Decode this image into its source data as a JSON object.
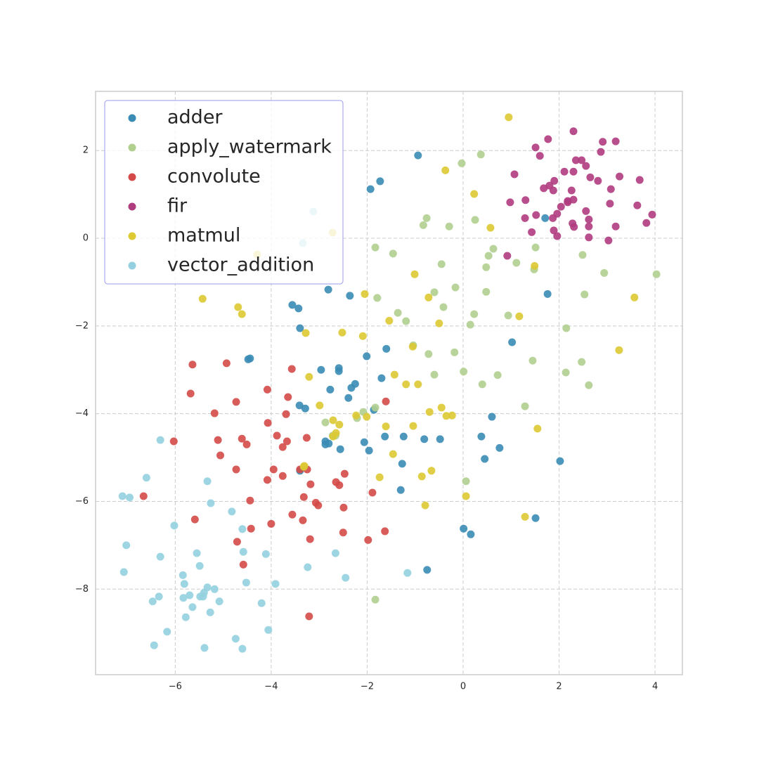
{
  "chart_data": {
    "type": "scatter",
    "xlim": [
      -7.66,
      4.57
    ],
    "ylim": [
      -9.95,
      3.35
    ],
    "xticks": [
      {
        "value": -6,
        "label": "−6"
      },
      {
        "value": -4,
        "label": "−4"
      },
      {
        "value": -2,
        "label": "−2"
      },
      0,
      2,
      4
    ],
    "yticks": [
      {
        "value": -8,
        "label": "−8"
      },
      {
        "value": -6,
        "label": "−6"
      },
      {
        "value": -4,
        "label": "−4"
      },
      {
        "value": -2,
        "label": "−2"
      },
      0,
      2
    ],
    "grid": true,
    "legend": "upper left",
    "series": [
      {
        "name": "adder",
        "color": "#3b8cb5",
        "x": [
          -0.94,
          -1.93,
          -1.73,
          -2.81,
          -2.36,
          -3.56,
          -3.43,
          -3.4,
          -1.6,
          -2.01,
          -4.48,
          -4.44,
          -2.96,
          -2.59,
          -2.59,
          -1.7,
          -2.77,
          -2.33,
          -2.25,
          -2.39,
          -3.41,
          -3.29,
          -1.86,
          -1.63,
          -1.24,
          -0.81,
          -0.48,
          0.38,
          0.6,
          -2.87,
          -2.8,
          -2.87,
          -2.56,
          -2.06,
          -1.96,
          -1.27,
          0.45,
          0.76,
          -1.3,
          0.01,
          0.16,
          1.51,
          2.02,
          -0.75,
          1.76,
          1.71,
          1.02,
          -3.4
        ],
        "values": [
          1.89,
          1.12,
          1.3,
          -1.17,
          -1.31,
          -1.52,
          -1.6,
          -2.05,
          -2.52,
          -2.69,
          -2.76,
          -2.74,
          -3.0,
          -2.96,
          -3.03,
          -3.19,
          -3.45,
          -3.41,
          -3.32,
          -3.64,
          -3.81,
          -3.88,
          -3.91,
          -4.52,
          -4.52,
          -4.58,
          -4.58,
          -4.52,
          -4.07,
          -4.63,
          -4.68,
          -4.7,
          -4.81,
          -4.65,
          -4.84,
          -5.14,
          -5.03,
          -4.78,
          -5.74,
          -6.62,
          -6.75,
          -6.38,
          -5.08,
          -7.56,
          -1.27,
          0.46,
          -2.37,
          -5.3
        ]
      },
      {
        "name": "apply_watermark",
        "color": "#b1cf8f",
        "x": [
          -0.03,
          0.37,
          -0.76,
          -0.83,
          -0.29,
          0.25,
          -1.83,
          -1.46,
          -0.45,
          -0.16,
          -0.6,
          -0.41,
          -1.79,
          -1.36,
          -1.19,
          -1.04,
          -0.72,
          -0.18,
          -0.6,
          0.01,
          0.4,
          0.72,
          0.15,
          0.23,
          0.48,
          0.63,
          0.53,
          0.48,
          0.94,
          1.11,
          1.51,
          1.48,
          2.49,
          2.53,
          2.94,
          4.03,
          2.15,
          2.14,
          2.47,
          2.62,
          1.45,
          1.29,
          -2.87,
          -2.08,
          -2.21,
          -1.83,
          -2.72,
          0.06,
          -1.83,
          -2.66
        ],
        "values": [
          1.71,
          1.91,
          0.46,
          0.3,
          0.27,
          0.42,
          -0.21,
          -0.35,
          -0.59,
          -1.12,
          -1.23,
          -1.57,
          -1.36,
          -1.7,
          -1.89,
          -2.44,
          -2.64,
          -2.6,
          -3.11,
          -3.04,
          -3.33,
          -3.12,
          -1.97,
          -1.73,
          -0.66,
          -0.24,
          -0.4,
          -1.22,
          -1.76,
          -0.56,
          -0.21,
          -0.71,
          -0.38,
          -1.28,
          -0.79,
          -0.82,
          -2.05,
          -3.06,
          -2.82,
          -3.35,
          -2.79,
          -3.83,
          -4.2,
          -3.96,
          -4.1,
          -3.86,
          -4.5,
          -5.54,
          -8.24,
          -4.5
        ]
      },
      {
        "name": "convolute",
        "color": "#d44a48",
        "x": [
          -5.64,
          -4.93,
          -3.57,
          -5.68,
          -5.18,
          -4.73,
          -4.08,
          -3.65,
          -1.61,
          -4.07,
          -3.69,
          -3.88,
          -3.26,
          -3.76,
          -3.67,
          -4.61,
          -4.51,
          -5.11,
          -6.03,
          -5.06,
          -4.73,
          -3.95,
          -3.4,
          -3.25,
          -3.76,
          -4.08,
          -3.18,
          -2.65,
          -2.58,
          -2.47,
          -1.89,
          -6.66,
          -3.32,
          -3.07,
          -3.02,
          -2.49,
          -4.44,
          -5.59,
          -3.56,
          -4.0,
          -3.34,
          -4.42,
          -2.5,
          -1.63,
          -1.98,
          -3.19,
          -4.71,
          -4.58,
          -3.21
        ],
        "values": [
          -2.88,
          -2.85,
          -2.98,
          -3.54,
          -3.99,
          -3.73,
          -3.45,
          -3.62,
          -3.72,
          -4.21,
          -4.01,
          -4.5,
          -4.55,
          -4.76,
          -4.63,
          -4.57,
          -4.7,
          -4.6,
          -4.63,
          -4.95,
          -5.27,
          -5.27,
          -5.27,
          -5.27,
          -5.42,
          -5.51,
          -5.61,
          -5.56,
          -5.63,
          -5.37,
          -5.8,
          -5.88,
          -5.9,
          -6.03,
          -6.09,
          -6.14,
          -5.98,
          -6.41,
          -6.3,
          -6.51,
          -6.43,
          -6.62,
          -6.71,
          -6.68,
          -6.88,
          -6.86,
          -6.92,
          -7.44,
          -8.62
        ]
      },
      {
        "name": "fir",
        "color": "#b03c80",
        "x": [
          2.3,
          1.77,
          1.51,
          1.6,
          1.07,
          1.68,
          1.9,
          1.8,
          1.88,
          2.11,
          2.35,
          2.47,
          2.56,
          2.65,
          2.81,
          2.91,
          2.87,
          3.18,
          3.26,
          3.08,
          3.06,
          3.68,
          3.94,
          3.82,
          3.63,
          3.18,
          3.03,
          2.62,
          2.62,
          2.62,
          2.56,
          2.3,
          2.18,
          2.26,
          2.04,
          1.87,
          1.96,
          1.52,
          1.29,
          1.3,
          0.98,
          1.43,
          1.89,
          1.96,
          2.28,
          2.31,
          0.92,
          2.18,
          2.3
        ],
        "values": [
          1.52,
          2.26,
          2.07,
          1.88,
          1.46,
          1.14,
          1.31,
          1.2,
          1.09,
          1.52,
          1.78,
          1.78,
          1.65,
          1.39,
          1.31,
          2.2,
          1.97,
          2.21,
          1.41,
          1.12,
          0.79,
          1.33,
          0.54,
          0.35,
          0.75,
          0.27,
          -0.05,
          0.02,
          0.27,
          0.43,
          0.62,
          0.88,
          0.85,
          1.09,
          0.72,
          0.46,
          0.56,
          0.53,
          0.46,
          0.87,
          0.82,
          0.14,
          0.18,
          0.05,
          0.34,
          0.26,
          -0.4,
          0.82,
          2.44
        ]
      },
      {
        "name": "matmul",
        "color": "#ddc933",
        "x": [
          0.95,
          -0.37,
          0.23,
          0.57,
          -2.72,
          -4.29,
          -5.43,
          -4.69,
          -4.61,
          -1.01,
          -2.05,
          -0.72,
          -1.54,
          -0.5,
          1.17,
          1.49,
          3.57,
          3.25,
          -2.52,
          -2.09,
          -3.28,
          -1.05,
          -1.43,
          -1.19,
          -0.94,
          -3.21,
          -2.99,
          -2.23,
          -2.01,
          -2.71,
          -2.58,
          -2.65,
          -2.71,
          -1.61,
          -1.04,
          -0.7,
          -0.45,
          -0.35,
          -0.23,
          1.55,
          -1.46,
          -3.32,
          -1.74,
          -0.66,
          -0.86,
          -0.79,
          0.06,
          1.29,
          -3.31
        ],
        "values": [
          2.76,
          1.55,
          1.01,
          0.24,
          0.13,
          -0.37,
          -1.38,
          -1.57,
          -1.73,
          -0.82,
          -1.27,
          -1.35,
          -1.88,
          -1.94,
          -1.78,
          -0.63,
          -1.35,
          -2.55,
          -2.15,
          -2.23,
          -2.16,
          -2.47,
          -3.11,
          -3.33,
          -3.33,
          -3.16,
          -3.81,
          -4.04,
          -4.07,
          -4.15,
          -4.25,
          -4.44,
          -4.52,
          -4.29,
          -4.28,
          -3.96,
          -3.86,
          -4.05,
          -4.04,
          -4.34,
          -4.92,
          -5.21,
          -5.45,
          -5.3,
          -5.43,
          -6.09,
          -5.88,
          -6.35,
          -5.19
        ]
      },
      {
        "name": "vector_addition",
        "color": "#94d0df",
        "x": [
          -3.12,
          -3.34,
          -6.31,
          -6.6,
          -7.1,
          -6.95,
          -5.33,
          -5.26,
          -4.82,
          -6.02,
          -4.6,
          -7.02,
          -6.31,
          -5.55,
          -4.58,
          -4.11,
          -2.66,
          -7.07,
          -5.49,
          -3.24,
          -2.45,
          -1.16,
          -5.84,
          -5.81,
          -4.52,
          -3.91,
          -5.18,
          -5.33,
          -6.34,
          -6.47,
          -5.83,
          -5.7,
          -5.48,
          -5.4,
          -5.42,
          -5.08,
          -4.2,
          -5.64,
          -5.78,
          -5.27,
          -6.17,
          -4.06,
          -4.74,
          -6.44,
          -5.39,
          -4.6
        ],
        "values": [
          0.61,
          -0.11,
          -4.6,
          -5.46,
          -5.88,
          -5.91,
          -5.54,
          -6.04,
          -6.23,
          -6.55,
          -6.63,
          -7.0,
          -7.26,
          -7.18,
          -7.15,
          -7.2,
          -7.18,
          -7.61,
          -7.47,
          -7.5,
          -7.74,
          -7.63,
          -7.68,
          -7.88,
          -7.85,
          -7.88,
          -8.0,
          -7.96,
          -8.17,
          -8.28,
          -8.2,
          -8.14,
          -8.17,
          -8.08,
          -8.17,
          -8.28,
          -8.32,
          -8.41,
          -8.64,
          -8.53,
          -8.97,
          -8.93,
          -9.13,
          -9.28,
          -9.34,
          -9.36
        ]
      }
    ]
  }
}
